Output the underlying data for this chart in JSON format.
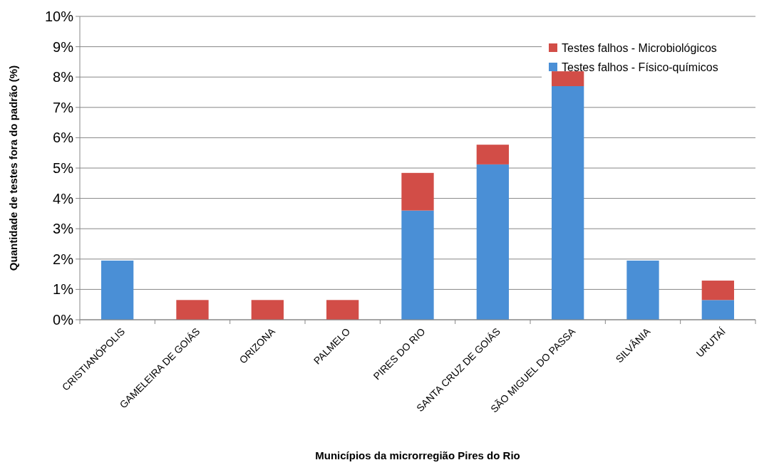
{
  "chart_data": {
    "type": "bar",
    "stacked": true,
    "xlabel": "Municípios da microrregião Pires do Rio",
    "ylabel": "Quantidade de testes fora do padrão (%)",
    "categories": [
      "CRISTIANÓPOLIS",
      "GAMELEIRA DE GOIÁS",
      "ORIZONA",
      "PALMELO",
      "PIRES DO RIO",
      "SANTA CRUZ DE GOIÁS",
      "SÃO MIGUEL DO PASSA",
      "SILVÂNIA",
      "URUTAÍ"
    ],
    "series": [
      {
        "name": "Testes falhos - Físico-químicos",
        "color": "#4a8fd6",
        "values": [
          1.95,
          0,
          0,
          0,
          3.6,
          5.12,
          7.7,
          1.95,
          0.65
        ]
      },
      {
        "name": "Testes falhos - Microbiológicos",
        "color": "#d24d47",
        "values": [
          0,
          0.65,
          0.65,
          0.65,
          1.24,
          0.65,
          0.49,
          0,
          0.64
        ]
      }
    ],
    "ylim": [
      0,
      10
    ],
    "yticks": [
      {
        "value": 0,
        "label": "0%"
      },
      {
        "value": 1,
        "label": "1%"
      },
      {
        "value": 2,
        "label": "2%"
      },
      {
        "value": 3,
        "label": "3%"
      },
      {
        "value": 4,
        "label": "4%"
      },
      {
        "value": 5,
        "label": "5%"
      },
      {
        "value": 6,
        "label": "6%"
      },
      {
        "value": 7,
        "label": "7%"
      },
      {
        "value": 8,
        "label": "8%"
      },
      {
        "value": 9,
        "label": "9%"
      },
      {
        "value": 10,
        "label": "10%"
      }
    ],
    "grid": "y",
    "legend": "top right"
  }
}
